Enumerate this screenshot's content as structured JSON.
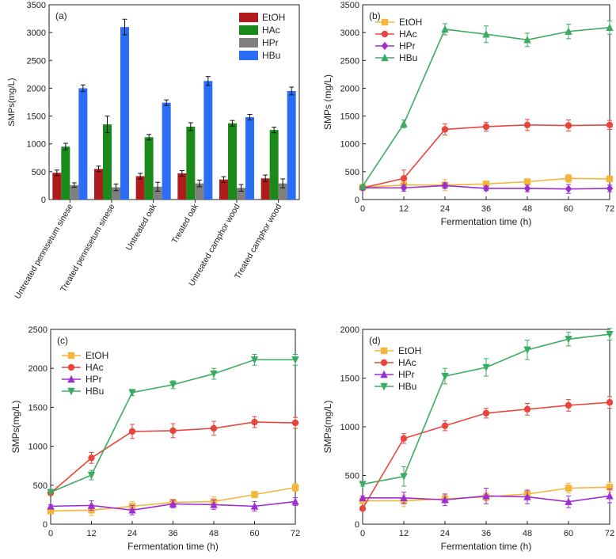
{
  "chart_data": [
    {
      "type": "bar",
      "panel": "(a)",
      "ylabel": "SMPs(mg/L)",
      "ylim": [
        0,
        3500
      ],
      "yticks": [
        0,
        500,
        1000,
        1500,
        2000,
        2500,
        3000,
        3500
      ],
      "legend_position": "top-right",
      "categories": [
        "Untreated pennisetum sinese",
        "Treated pennisetum sinese",
        "Untreated oak",
        "Treated oak",
        "Untreated camphor wood",
        "Treated camphor wood"
      ],
      "series": [
        {
          "name": "EtOH",
          "color": "#b01c1c",
          "values": [
            480,
            550,
            420,
            470,
            360,
            380
          ],
          "errors": [
            50,
            50,
            50,
            50,
            50,
            60
          ]
        },
        {
          "name": "HAc",
          "color": "#1a8a1a",
          "values": [
            950,
            1350,
            1120,
            1310,
            1370,
            1250
          ],
          "errors": [
            60,
            150,
            50,
            70,
            50,
            50
          ]
        },
        {
          "name": "HPr",
          "color": "#7f7f7f",
          "values": [
            260,
            220,
            230,
            290,
            210,
            290
          ],
          "errors": [
            40,
            60,
            80,
            60,
            60,
            80
          ]
        },
        {
          "name": "HBu",
          "color": "#2b6ef5",
          "values": [
            2000,
            3100,
            1740,
            2130,
            1480,
            1950
          ],
          "errors": [
            60,
            140,
            50,
            80,
            50,
            70
          ]
        }
      ]
    },
    {
      "type": "line",
      "panel": "(b)",
      "xlabel": "Fermentation time (h)",
      "ylabel": "SMPs (mg/L)",
      "x": [
        0,
        12,
        24,
        36,
        48,
        60,
        72
      ],
      "xlim": [
        0,
        72
      ],
      "ylim": [
        0,
        3500
      ],
      "yticks": [
        0,
        500,
        1000,
        1500,
        2000,
        2500,
        3000,
        3500
      ],
      "legend_position": "top-left",
      "series": [
        {
          "name": "EtOH",
          "color": "#f4b63a",
          "marker": "square",
          "values": [
            220,
            260,
            260,
            280,
            320,
            380,
            370
          ],
          "errors": [
            20,
            50,
            100,
            40,
            50,
            70,
            50
          ]
        },
        {
          "name": "HAc",
          "color": "#e8463c",
          "marker": "circle",
          "values": [
            210,
            380,
            1260,
            1310,
            1340,
            1330,
            1340
          ],
          "errors": [
            20,
            150,
            100,
            80,
            100,
            100,
            80
          ]
        },
        {
          "name": "HPr",
          "color": "#9d2fd2",
          "marker": "diamond",
          "values": [
            210,
            210,
            250,
            200,
            200,
            190,
            200
          ],
          "errors": [
            20,
            60,
            50,
            40,
            60,
            80,
            60
          ]
        },
        {
          "name": "HBu",
          "color": "#3cab62",
          "marker": "triangle-up",
          "values": [
            240,
            1360,
            3060,
            2970,
            2870,
            3020,
            3090
          ],
          "errors": [
            20,
            70,
            100,
            150,
            120,
            130,
            120
          ]
        }
      ]
    },
    {
      "type": "line",
      "panel": "(c)",
      "xlabel": "Fermentation time (h)",
      "ylabel": "SMPs(mg/L)",
      "x": [
        0,
        12,
        24,
        36,
        48,
        60,
        72
      ],
      "xlim": [
        0,
        72
      ],
      "ylim": [
        0,
        2500
      ],
      "yticks": [
        0,
        500,
        1000,
        1500,
        2000,
        2500
      ],
      "legend_position": "top-left",
      "series": [
        {
          "name": "EtOH",
          "color": "#f4b63a",
          "marker": "square",
          "values": [
            170,
            180,
            230,
            280,
            290,
            380,
            470
          ],
          "errors": [
            20,
            70,
            60,
            40,
            60,
            40,
            50
          ]
        },
        {
          "name": "HAc",
          "color": "#e8463c",
          "marker": "circle",
          "values": [
            400,
            850,
            1190,
            1200,
            1230,
            1310,
            1300
          ],
          "errors": [
            20,
            70,
            90,
            90,
            90,
            70,
            70
          ]
        },
        {
          "name": "HPr",
          "color": "#9d2fd2",
          "marker": "triangle-up",
          "values": [
            230,
            240,
            180,
            260,
            250,
            230,
            290
          ],
          "errors": [
            20,
            60,
            60,
            50,
            60,
            60,
            50
          ]
        },
        {
          "name": "HBu",
          "color": "#3cab62",
          "marker": "triangle-down",
          "values": [
            410,
            630,
            1690,
            1790,
            1930,
            2110,
            2110
          ],
          "errors": [
            20,
            60,
            40,
            50,
            70,
            70,
            70
          ]
        }
      ]
    },
    {
      "type": "line",
      "panel": "(d)",
      "xlabel": "Fermentation time (h)",
      "ylabel": "SMPs(mg/L)",
      "x": [
        0,
        12,
        24,
        36,
        48,
        60,
        72
      ],
      "xlim": [
        0,
        72
      ],
      "ylim": [
        0,
        2000
      ],
      "yticks": [
        0,
        500,
        1000,
        1500,
        2000
      ],
      "legend_position": "top-left",
      "series": [
        {
          "name": "EtOH",
          "color": "#f4b63a",
          "marker": "square",
          "values": [
            240,
            240,
            260,
            280,
            310,
            370,
            380
          ],
          "errors": [
            20,
            60,
            40,
            40,
            40,
            50,
            50
          ]
        },
        {
          "name": "HAc",
          "color": "#e8463c",
          "marker": "circle",
          "values": [
            160,
            880,
            1010,
            1140,
            1180,
            1220,
            1250
          ],
          "errors": [
            20,
            50,
            50,
            50,
            60,
            60,
            60
          ]
        },
        {
          "name": "HPr",
          "color": "#9d2fd2",
          "marker": "triangle-up",
          "values": [
            270,
            270,
            250,
            290,
            280,
            230,
            290
          ],
          "errors": [
            20,
            60,
            60,
            80,
            70,
            60,
            70
          ]
        },
        {
          "name": "HBu",
          "color": "#3cab62",
          "marker": "triangle-down",
          "values": [
            410,
            490,
            1520,
            1610,
            1790,
            1900,
            1950
          ],
          "errors": [
            20,
            100,
            80,
            90,
            100,
            70,
            60
          ]
        }
      ]
    }
  ]
}
